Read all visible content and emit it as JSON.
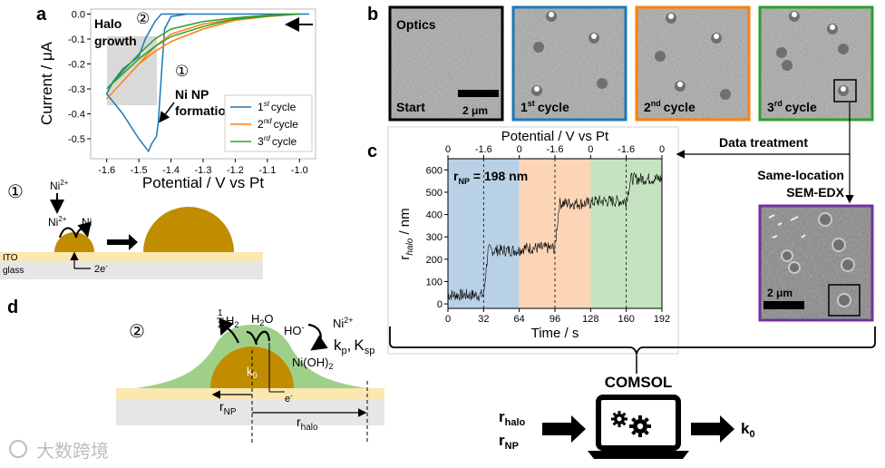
{
  "panels": {
    "a": "a",
    "b": "b",
    "c": "c",
    "d": "d"
  },
  "colors": {
    "cycle1": "#1f77b4",
    "cycle2": "#ff7f0e",
    "cycle3": "#2ca02c",
    "gold": "#c08d00",
    "halo": "#9fd08a",
    "ito": "#fbe7b0",
    "glass": "#e6e6e6",
    "bg1": "#b9d1e6",
    "bg2": "#fbd5b5",
    "bg3": "#c5e3c0",
    "frame_start": "#000000",
    "frame_sem": "#7030a0"
  },
  "chart_a": {
    "type": "line",
    "xlabel": "Potential / V vs Pt",
    "ylabel": "Current / μA",
    "xlim": [
      -1.65,
      -0.95
    ],
    "ylim": [
      -0.58,
      0.02
    ],
    "xticks": [
      "-1.6",
      "-1.5",
      "-1.4",
      "-1.3",
      "-1.2",
      "-1.1",
      "-1.0"
    ],
    "xtick_values": [
      -1.6,
      -1.5,
      -1.4,
      -1.3,
      -1.2,
      -1.1,
      -1.0
    ],
    "yticks": [
      "0.0",
      "-0.1",
      "-0.2",
      "-0.3",
      "-0.4",
      "-0.5"
    ],
    "ytick_values": [
      0.0,
      -0.1,
      -0.2,
      -0.3,
      -0.4,
      -0.5
    ],
    "legend": [
      "cycle",
      "cycle",
      "cycle"
    ],
    "legend_sup": [
      "st",
      "nd",
      "rd"
    ],
    "legend_num": [
      "1",
      "2",
      "3"
    ],
    "annotation_halo_1": "Halo",
    "annotation_halo_2": "growth",
    "annotation_halo_num": "②",
    "annotation_ni_num": "①",
    "annotation_ni_1": "Ni NP",
    "annotation_ni_2": "formation",
    "series": [
      {
        "name": "1st cycle",
        "x": [
          -1.0,
          -1.1,
          -1.2,
          -1.3,
          -1.35,
          -1.4,
          -1.42,
          -1.43,
          -1.44,
          -1.445,
          -1.45,
          -1.46,
          -1.47,
          -1.5,
          -1.55,
          -1.6,
          -1.6,
          -1.58,
          -1.55,
          -1.5,
          -1.48,
          -1.45,
          -1.43,
          -1.42,
          -1.415,
          -1.4,
          -1.3,
          -1.2,
          -1.1,
          -1.0,
          -0.97
        ],
        "y": [
          0.0,
          0.0,
          0.0,
          0.0,
          0.0,
          -0.01,
          -0.06,
          -0.25,
          -0.44,
          -0.49,
          -0.5,
          -0.52,
          -0.55,
          -0.5,
          -0.4,
          -0.32,
          -0.32,
          -0.27,
          -0.22,
          -0.17,
          -0.1,
          -0.03,
          0.0,
          0.0,
          0.0,
          0.0,
          0.0,
          0.0,
          0.0,
          0.0,
          0.0
        ]
      },
      {
        "name": "2nd cycle",
        "x": [
          -1.0,
          -1.1,
          -1.2,
          -1.3,
          -1.4,
          -1.45,
          -1.5,
          -1.55,
          -1.6,
          -1.6,
          -1.55,
          -1.5,
          -1.45,
          -1.4,
          -1.3,
          -1.2,
          -1.1,
          -1.0
        ],
        "y": [
          0.0,
          -0.005,
          -0.02,
          -0.04,
          -0.08,
          -0.13,
          -0.2,
          -0.27,
          -0.34,
          -0.34,
          -0.27,
          -0.2,
          -0.15,
          -0.11,
          -0.06,
          -0.025,
          -0.01,
          0.0
        ]
      },
      {
        "name": "3rd cycle",
        "x": [
          -1.0,
          -1.1,
          -1.2,
          -1.3,
          -1.4,
          -1.45,
          -1.5,
          -1.55,
          -1.6,
          -1.6,
          -1.55,
          -1.5,
          -1.45,
          -1.4,
          -1.3,
          -1.2,
          -1.1,
          -1.0
        ],
        "y": [
          0.0,
          -0.005,
          -0.015,
          -0.03,
          -0.06,
          -0.1,
          -0.16,
          -0.23,
          -0.3,
          -0.3,
          -0.24,
          -0.18,
          -0.13,
          -0.09,
          -0.05,
          -0.02,
          -0.008,
          0.0
        ]
      }
    ]
  },
  "chart_c": {
    "type": "line",
    "xlabel": "Time / s",
    "ylabel_main": "r",
    "ylabel_sub": "halo",
    "ylabel_unit": " / nm",
    "top_axis_label": "Potential / V vs Pt",
    "top_ticks": [
      "0",
      "-1.6",
      "0",
      "-1.6",
      "0",
      "-1.6",
      "0"
    ],
    "top_tick_values": [
      0,
      32,
      64,
      96,
      128,
      160,
      192
    ],
    "xticks": [
      "0",
      "32",
      "64",
      "96",
      "128",
      "160",
      "192"
    ],
    "xtick_values": [
      0,
      32,
      64,
      96,
      128,
      160,
      192
    ],
    "yticks": [
      "0",
      "100",
      "200",
      "300",
      "400",
      "500",
      "600"
    ],
    "ytick_values": [
      0,
      100,
      200,
      300,
      400,
      500,
      600
    ],
    "xlim": [
      0,
      192
    ],
    "ylim": [
      -20,
      650
    ],
    "annotation_main": "r",
    "annotation_sub": "NP",
    "annotation_value": " = 198 nm",
    "levels": [
      {
        "t0": 0,
        "t1": 32,
        "r": 40
      },
      {
        "t0": 32,
        "t1": 64,
        "r": 240
      },
      {
        "t0": 64,
        "t1": 96,
        "r": 250
      },
      {
        "t0": 96,
        "t1": 128,
        "r": 450
      },
      {
        "t0": 128,
        "t1": 160,
        "r": 460
      },
      {
        "t0": 160,
        "t1": 192,
        "r": 560
      }
    ]
  },
  "optics": {
    "title": "Optics",
    "labels": [
      "Start",
      "cycle",
      "cycle",
      "cycle"
    ],
    "label_num": [
      "1",
      "2",
      "3"
    ],
    "label_sup": [
      "st",
      "nd",
      "rd"
    ],
    "scale_bar": "2 μm"
  },
  "data_treatment": "Data treatment",
  "sem_label_1": "Same-location",
  "sem_label_2": "SEM-EDX",
  "sem_scale": "2 μm",
  "scheme1": {
    "num": "①",
    "ni_top": "Ni",
    "ni_top_sup": "2+",
    "ni_mid": "Ni",
    "ni_mid_sup": "2+",
    "ni_right": "Ni",
    "electrons": "2e",
    "electrons_sup": "-",
    "ito": "ITO",
    "glass": "glass"
  },
  "scheme2": {
    "num": "②",
    "h2_frac_top": "1",
    "h2_frac_bot": "2",
    "h2": "H",
    "h2_sub": "2",
    "h2o": "H",
    "h2o_sub": "2",
    "h2o_tail": "O",
    "ho": "HO",
    "ho_sup": "-",
    "ni_plus": "Ni",
    "ni_plus_sup": "2+",
    "kp": "k",
    "kp_sub": "p",
    "comma": ",",
    "ksp": "K",
    "ksp_sub": "sp",
    "nioh": "Ni(OH)",
    "nioh_sub": "2",
    "k0": "k",
    "k0_sub": "0",
    "e": "e",
    "e_sup": "-",
    "rnp": "r",
    "rnp_sub": "NP",
    "rhalo": "r",
    "rhalo_sub": "halo"
  },
  "comsol": {
    "title": "COMSOL",
    "in1": "r",
    "in1_sub": "halo",
    "in2": "r",
    "in2_sub": "NP",
    "out": "k",
    "out_sub": "0"
  },
  "watermark": "大数跨境"
}
